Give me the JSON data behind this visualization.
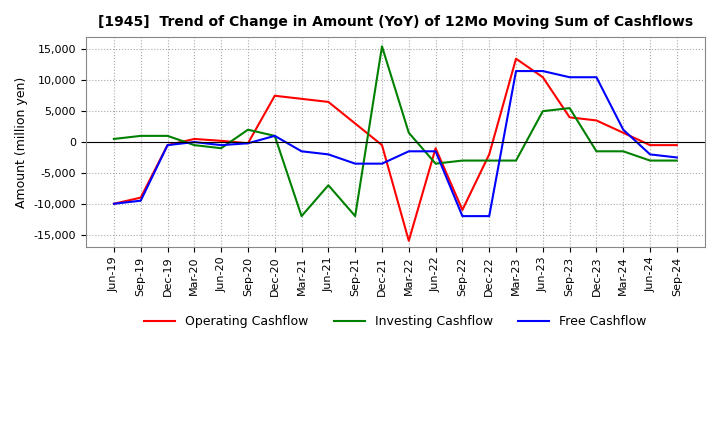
{
  "title": "[1945]  Trend of Change in Amount (YoY) of 12Mo Moving Sum of Cashflows",
  "ylabel": "Amount (million yen)",
  "x_labels": [
    "Jun-19",
    "Sep-19",
    "Dec-19",
    "Mar-20",
    "Jun-20",
    "Sep-20",
    "Dec-20",
    "Mar-21",
    "Jun-21",
    "Sep-21",
    "Dec-21",
    "Mar-22",
    "Jun-22",
    "Sep-22",
    "Dec-22",
    "Mar-23",
    "Jun-23",
    "Sep-23",
    "Dec-23",
    "Mar-24",
    "Jun-24",
    "Sep-24"
  ],
  "operating": [
    -10000,
    -9000,
    -500,
    500,
    200,
    -200,
    7500,
    7000,
    6500,
    3000,
    -500,
    -16000,
    -1000,
    -11000,
    -2000,
    13500,
    10500,
    4000,
    3500,
    1500,
    -500,
    -500
  ],
  "investing": [
    500,
    1000,
    1000,
    -500,
    -1000,
    2000,
    1000,
    -12000,
    -7000,
    -12000,
    15500,
    1500,
    -3500,
    -3000,
    -3000,
    -3000,
    5000,
    5500,
    -1500,
    -1500,
    -3000,
    -3000
  ],
  "free": [
    -10000,
    -9500,
    -500,
    0,
    -500,
    -200,
    1000,
    -1500,
    -2000,
    -3500,
    -3500,
    -1500,
    -1500,
    -12000,
    -12000,
    11500,
    11500,
    10500,
    10500,
    2000,
    -2000,
    -2500
  ],
  "colors": {
    "operating": "#ff0000",
    "investing": "#008000",
    "free": "#0000ff"
  },
  "ylim": [
    -17000,
    17000
  ],
  "yticks": [
    -15000,
    -10000,
    -5000,
    0,
    5000,
    10000,
    15000
  ],
  "bg_color": "#ffffff",
  "grid_color": "#aaaaaa"
}
